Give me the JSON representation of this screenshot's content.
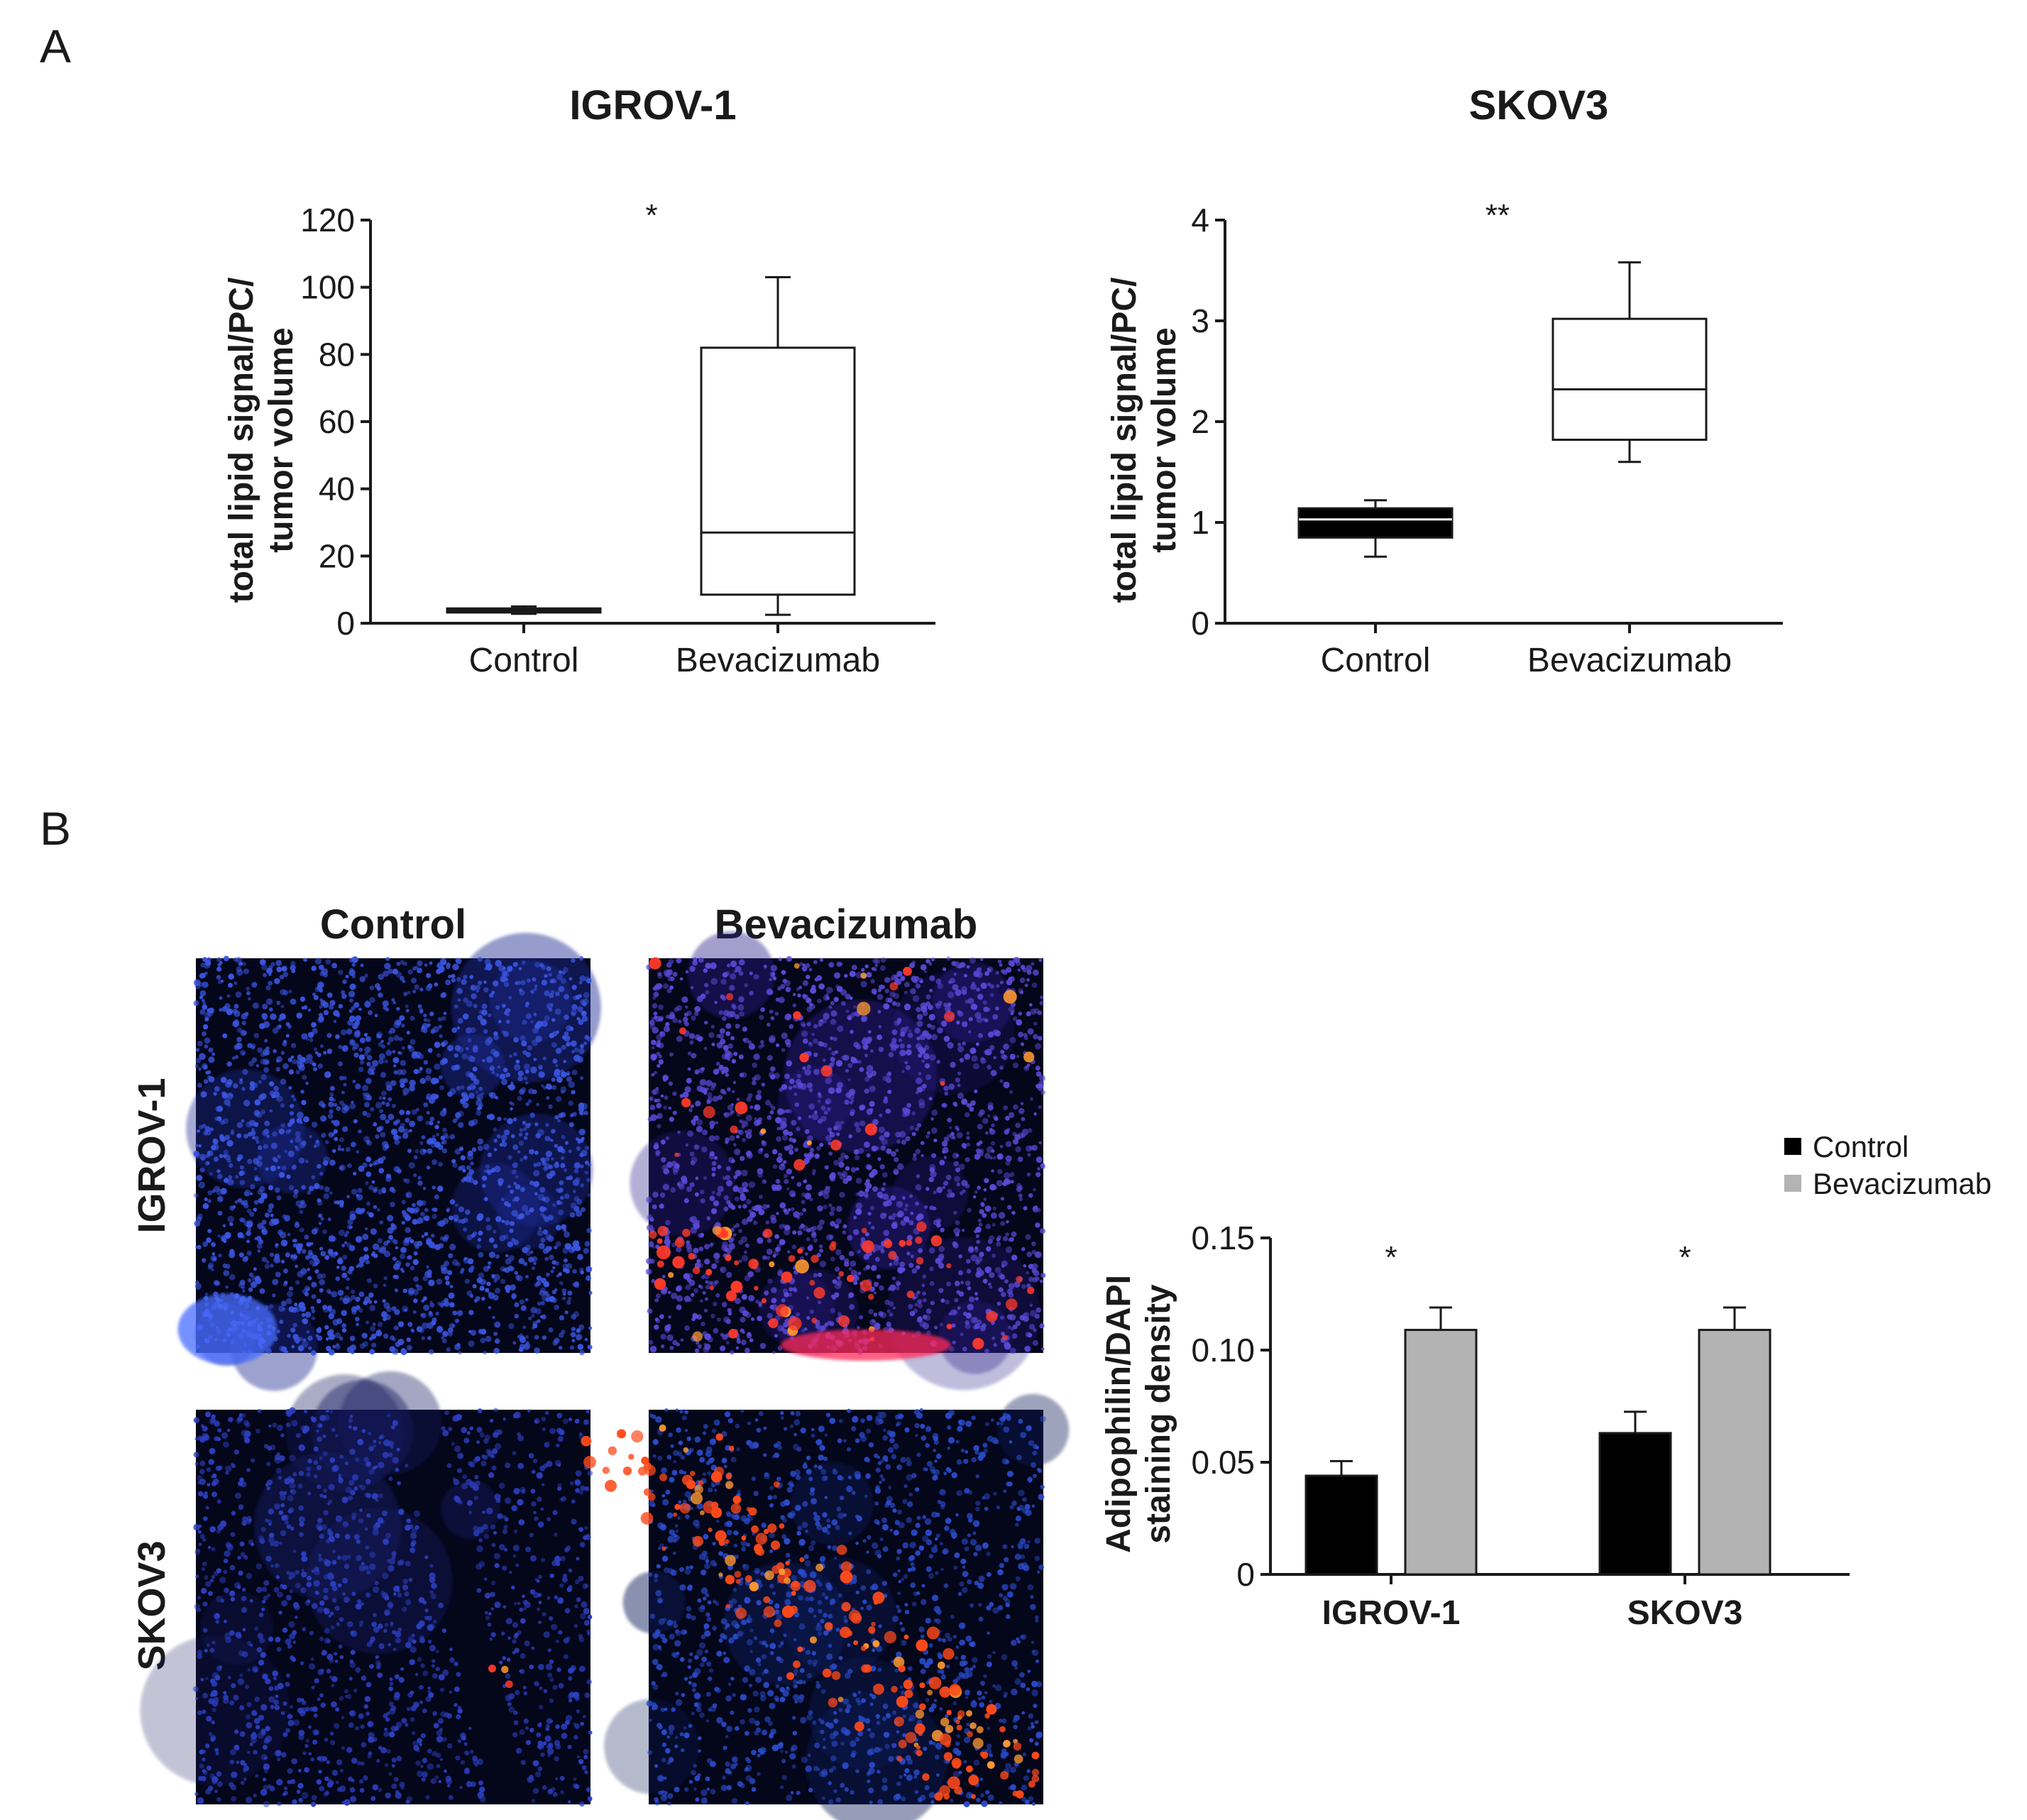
{
  "panels": {
    "a": "A",
    "b": "B"
  },
  "colors": {
    "control_fill": "#000000",
    "bevacizumab_fill": "#b3b3b3",
    "axis": "#1a1a1a",
    "dapi_blue": "#2c3fbf",
    "adipophilin_red": "#ff3a2a"
  },
  "microscopy": {
    "columns": [
      "Control",
      "Bevacizumab"
    ],
    "rows": [
      "IGROV-1",
      "SKOV3"
    ]
  },
  "chart_data": [
    {
      "type": "box",
      "title": "IGROV-1",
      "ylabel_lines": [
        "total lipid signal/PC/",
        "tumor volume"
      ],
      "categories": [
        "Control",
        "Bevacizumab"
      ],
      "ylim": [
        0,
        120
      ],
      "yticks": [
        "0",
        "20",
        "40",
        "60",
        "80",
        "100",
        "120"
      ],
      "boxes": [
        {
          "category": "Control",
          "min": 2.8,
          "q1": 3.2,
          "median": 3.8,
          "q3": 4.4,
          "max": 5.0
        },
        {
          "category": "Bevacizumab",
          "min": 2.5,
          "q1": 8.5,
          "median": 27,
          "q3": 82,
          "max": 103
        }
      ],
      "significance": "*",
      "grid": false
    },
    {
      "type": "box",
      "title": "SKOV3",
      "ylabel_lines": [
        "total lipid signal/PC/",
        "tumor volume"
      ],
      "categories": [
        "Control",
        "Bevacizumab"
      ],
      "ylim": [
        0,
        4
      ],
      "yticks": [
        "0",
        "1",
        "2",
        "3",
        "4"
      ],
      "boxes": [
        {
          "category": "Control",
          "min": 0.66,
          "q1": 0.85,
          "median": 1.03,
          "q3": 1.14,
          "max": 1.22
        },
        {
          "category": "Bevacizumab",
          "min": 1.6,
          "q1": 1.82,
          "median": 2.32,
          "q3": 3.02,
          "max": 3.58
        }
      ],
      "significance": "**",
      "grid": false
    },
    {
      "type": "bar",
      "ylabel_lines": [
        "Adipophilin/DAPI",
        "staining density"
      ],
      "categories": [
        "IGROV-1",
        "SKOV3"
      ],
      "ylim": [
        0,
        0.15
      ],
      "yticks": [
        "0",
        "0.05",
        "0.10",
        "0.15"
      ],
      "series": [
        {
          "name": "Control",
          "values": [
            0.044,
            0.063
          ],
          "errors": [
            0.0065,
            0.0095
          ]
        },
        {
          "name": "Bevacizumab",
          "values": [
            0.109,
            0.109
          ],
          "errors": [
            0.01,
            0.01
          ]
        }
      ],
      "significance": [
        "*",
        "*"
      ],
      "legend_position": "top-right",
      "grid": false
    }
  ]
}
